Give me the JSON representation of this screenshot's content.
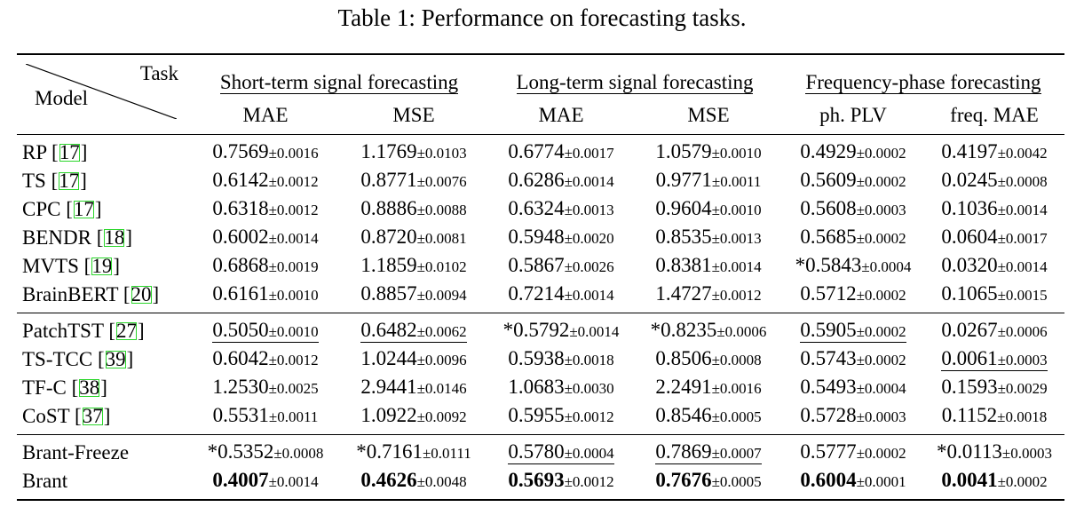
{
  "caption": "Table 1:  Performance on forecasting tasks.",
  "header": {
    "task_label": "Task",
    "model_label": "Model",
    "groups": [
      "Short-term signal forecasting",
      "Long-term signal forecasting",
      "Frequency-phase forecasting"
    ],
    "columns": [
      "MAE",
      "MSE",
      "MAE",
      "MSE",
      "ph. PLV",
      "freq. MAE"
    ]
  },
  "sections": [
    {
      "rows": [
        {
          "model": "RP",
          "ref": "17",
          "cells": [
            {
              "v": "0.7569",
              "pm": "±0.0016"
            },
            {
              "v": "1.1769",
              "pm": "±0.0103"
            },
            {
              "v": "0.6774",
              "pm": "±0.0017"
            },
            {
              "v": "1.0579",
              "pm": "±0.0010"
            },
            {
              "v": "0.4929",
              "pm": "±0.0002"
            },
            {
              "v": "0.4197",
              "pm": "±0.0042"
            }
          ]
        },
        {
          "model": "TS",
          "ref": "17",
          "cells": [
            {
              "v": "0.6142",
              "pm": "±0.0012"
            },
            {
              "v": "0.8771",
              "pm": "±0.0076"
            },
            {
              "v": "0.6286",
              "pm": "±0.0014"
            },
            {
              "v": "0.9771",
              "pm": "±0.0011"
            },
            {
              "v": "0.5609",
              "pm": "±0.0002"
            },
            {
              "v": "0.0245",
              "pm": "±0.0008"
            }
          ]
        },
        {
          "model": "CPC",
          "ref": "17",
          "cells": [
            {
              "v": "0.6318",
              "pm": "±0.0012"
            },
            {
              "v": "0.8886",
              "pm": "±0.0088"
            },
            {
              "v": "0.6324",
              "pm": "±0.0013"
            },
            {
              "v": "0.9604",
              "pm": "±0.0010"
            },
            {
              "v": "0.5608",
              "pm": "±0.0003"
            },
            {
              "v": "0.1036",
              "pm": "±0.0014"
            }
          ]
        },
        {
          "model": "BENDR",
          "ref": "18",
          "cells": [
            {
              "v": "0.6002",
              "pm": "±0.0014"
            },
            {
              "v": "0.8720",
              "pm": "±0.0081"
            },
            {
              "v": "0.5948",
              "pm": "±0.0020"
            },
            {
              "v": "0.8535",
              "pm": "±0.0013"
            },
            {
              "v": "0.5685",
              "pm": "±0.0002"
            },
            {
              "v": "0.0604",
              "pm": "±0.0017"
            }
          ]
        },
        {
          "model": "MVTS",
          "ref": "19",
          "cells": [
            {
              "v": "0.6868",
              "pm": "±0.0019"
            },
            {
              "v": "1.1859",
              "pm": "±0.0102"
            },
            {
              "v": "0.5867",
              "pm": "±0.0026"
            },
            {
              "v": "0.8381",
              "pm": "±0.0014"
            },
            {
              "v": "*0.5843",
              "pm": "±0.0004"
            },
            {
              "v": "0.0320",
              "pm": "±0.0014"
            }
          ]
        },
        {
          "model": "BrainBERT",
          "ref": "20",
          "cells": [
            {
              "v": "0.6161",
              "pm": "±0.0010"
            },
            {
              "v": "0.8857",
              "pm": "±0.0094"
            },
            {
              "v": "0.7214",
              "pm": "±0.0014"
            },
            {
              "v": "1.4727",
              "pm": "±0.0012"
            },
            {
              "v": "0.5712",
              "pm": "±0.0002"
            },
            {
              "v": "0.1065",
              "pm": "±0.0015"
            }
          ]
        }
      ]
    },
    {
      "rows": [
        {
          "model": "PatchTST",
          "ref": "27",
          "cells": [
            {
              "v": "0.5050",
              "pm": "±0.0010",
              "u": true
            },
            {
              "v": "0.6482",
              "pm": "±0.0062",
              "u": true
            },
            {
              "v": "*0.5792",
              "pm": "±0.0014"
            },
            {
              "v": "*0.8235",
              "pm": "±0.0006"
            },
            {
              "v": "0.5905",
              "pm": "±0.0002",
              "u": true
            },
            {
              "v": "0.0267",
              "pm": "±0.0006"
            }
          ]
        },
        {
          "model": "TS-TCC",
          "ref": "39",
          "cells": [
            {
              "v": "0.6042",
              "pm": "±0.0012"
            },
            {
              "v": "1.0244",
              "pm": "±0.0096"
            },
            {
              "v": "0.5938",
              "pm": "±0.0018"
            },
            {
              "v": "0.8506",
              "pm": "±0.0008"
            },
            {
              "v": "0.5743",
              "pm": "±0.0002"
            },
            {
              "v": "0.0061",
              "pm": "±0.0003",
              "u": true
            }
          ]
        },
        {
          "model": "TF-C",
          "ref": "38",
          "cells": [
            {
              "v": "1.2530",
              "pm": "±0.0025"
            },
            {
              "v": "2.9441",
              "pm": "±0.0146"
            },
            {
              "v": "1.0683",
              "pm": "±0.0030"
            },
            {
              "v": "2.2491",
              "pm": "±0.0016"
            },
            {
              "v": "0.5493",
              "pm": "±0.0004"
            },
            {
              "v": "0.1593",
              "pm": "±0.0029"
            }
          ]
        },
        {
          "model": "CoST",
          "ref": "37",
          "cells": [
            {
              "v": "0.5531",
              "pm": "±0.0011"
            },
            {
              "v": "1.0922",
              "pm": "±0.0092"
            },
            {
              "v": "0.5955",
              "pm": "±0.0012"
            },
            {
              "v": "0.8546",
              "pm": "±0.0005"
            },
            {
              "v": "0.5728",
              "pm": "±0.0003"
            },
            {
              "v": "0.1152",
              "pm": "±0.0018"
            }
          ]
        }
      ]
    },
    {
      "rows": [
        {
          "model": "Brant-Freeze",
          "ref": "",
          "cells": [
            {
              "v": "*0.5352",
              "pm": "±0.0008"
            },
            {
              "v": "*0.7161",
              "pm": "±0.0111"
            },
            {
              "v": "0.5780",
              "pm": "±0.0004",
              "u": true
            },
            {
              "v": "0.7869",
              "pm": "±0.0007",
              "u": true
            },
            {
              "v": "0.5777",
              "pm": "±0.0002"
            },
            {
              "v": "*0.0113",
              "pm": "±0.0003"
            }
          ]
        },
        {
          "model": "Brant",
          "ref": "",
          "bold": true,
          "cells": [
            {
              "v": "0.4007",
              "pm": "±0.0014"
            },
            {
              "v": "0.4626",
              "pm": "±0.0048"
            },
            {
              "v": "0.5693",
              "pm": "±0.0012"
            },
            {
              "v": "0.7676",
              "pm": "±0.0005"
            },
            {
              "v": "0.6004",
              "pm": "±0.0001"
            },
            {
              "v": "0.0041",
              "pm": "±0.0002"
            }
          ]
        }
      ]
    }
  ]
}
